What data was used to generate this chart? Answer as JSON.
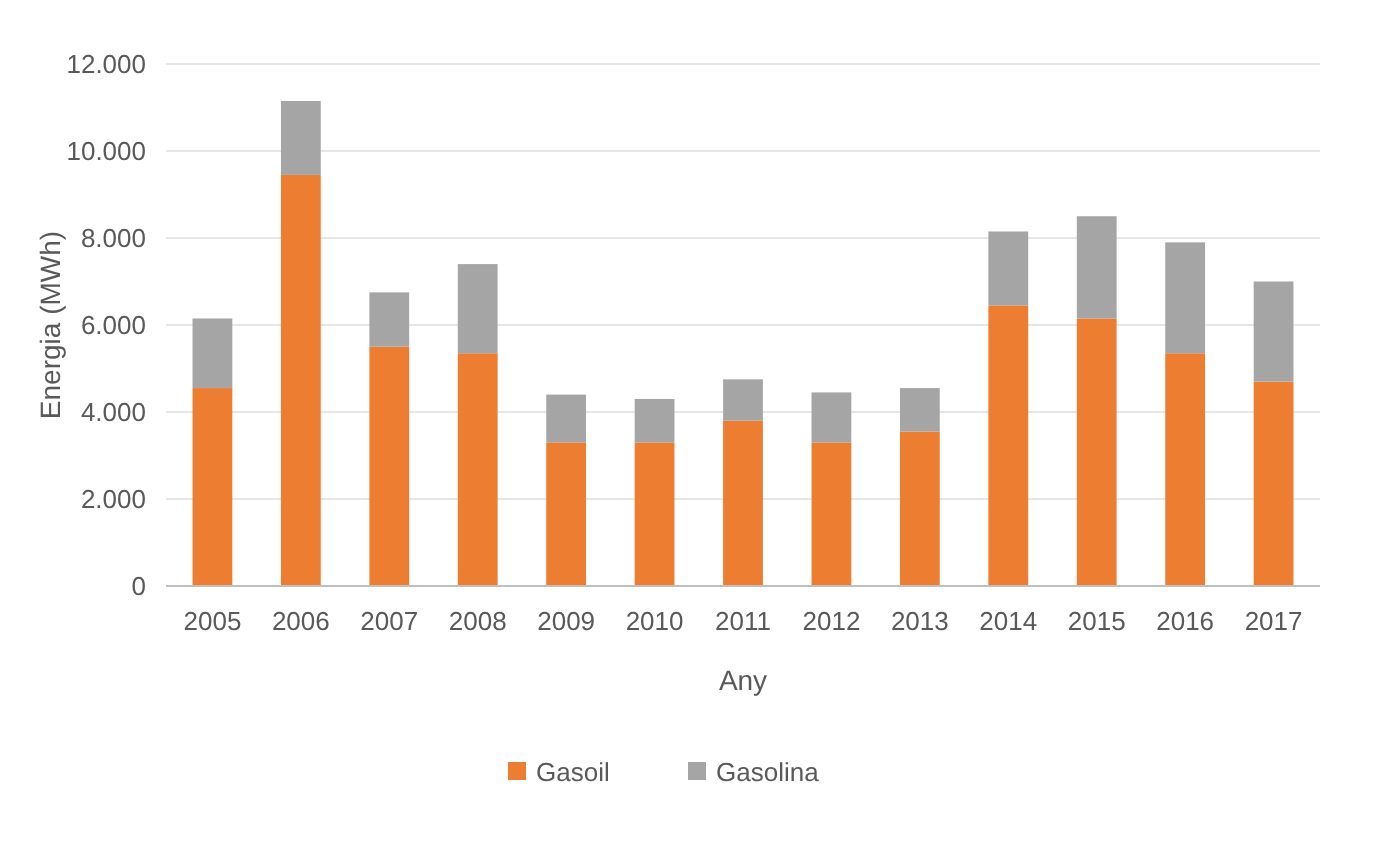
{
  "chart_data": {
    "type": "bar",
    "stacked": true,
    "xlabel": "Any",
    "ylabel": "Energia (MWh)",
    "categories": [
      "2005",
      "2006",
      "2007",
      "2008",
      "2009",
      "2010",
      "2011",
      "2012",
      "2013",
      "2014",
      "2015",
      "2016",
      "2017"
    ],
    "series": [
      {
        "name": "Gasoil",
        "color": "#ed7d31",
        "values": [
          4550,
          9450,
          5500,
          5350,
          3300,
          3300,
          3800,
          3300,
          3550,
          6450,
          6150,
          5350,
          4700
        ]
      },
      {
        "name": "Gasolina",
        "color": "#a5a5a5",
        "values": [
          1600,
          1700,
          1250,
          2050,
          1100,
          1000,
          950,
          1150,
          1000,
          1700,
          2350,
          2550,
          2300
        ]
      }
    ],
    "ylim": [
      0,
      12000
    ],
    "yticks": [
      {
        "value": 0,
        "label": "0"
      },
      {
        "value": 2000,
        "label": "2.000"
      },
      {
        "value": 4000,
        "label": "4.000"
      },
      {
        "value": 6000,
        "label": "6.000"
      },
      {
        "value": 8000,
        "label": "8.000"
      },
      {
        "value": 10000,
        "label": "10.000"
      },
      {
        "value": 12000,
        "label": "12.000"
      }
    ],
    "grid": "y",
    "legend": "bottom"
  }
}
